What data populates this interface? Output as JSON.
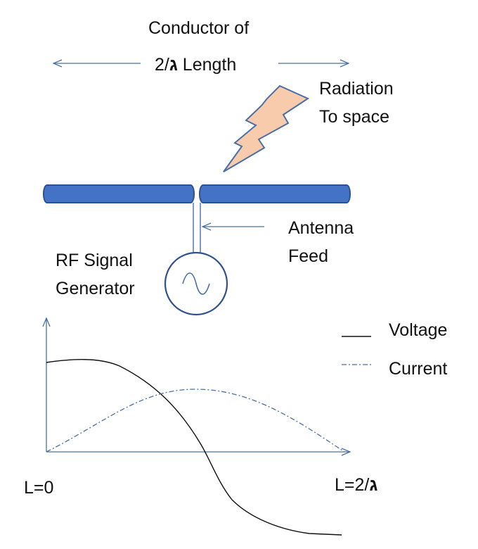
{
  "title": {
    "line1": "Conductor of",
    "lambda": "ג",
    "rest": "/2  Length"
  },
  "radiation": {
    "line1": "Radiation",
    "line2": "To space"
  },
  "feed": {
    "line1": "Antenna",
    "line2": "Feed"
  },
  "generator": {
    "line1": "RF Signal",
    "line2": "Generator"
  },
  "legend": {
    "voltage": "Voltage",
    "current": "Current"
  },
  "axis": {
    "start": "L=0",
    "end_prefix": "L=",
    "end_lambda": "ג",
    "end_suffix": "/2"
  },
  "colors": {
    "conductor_fill": "#4472c4",
    "conductor_stroke": "#2f528f",
    "bolt_fill": "#f8cbad",
    "bolt_stroke": "#4a6fa5",
    "guide_line": "#4a6fa5",
    "curve_line": "#111111"
  },
  "icons": {
    "bolt": "lightning-bolt-icon",
    "generator": "sine-wave-source-icon"
  }
}
